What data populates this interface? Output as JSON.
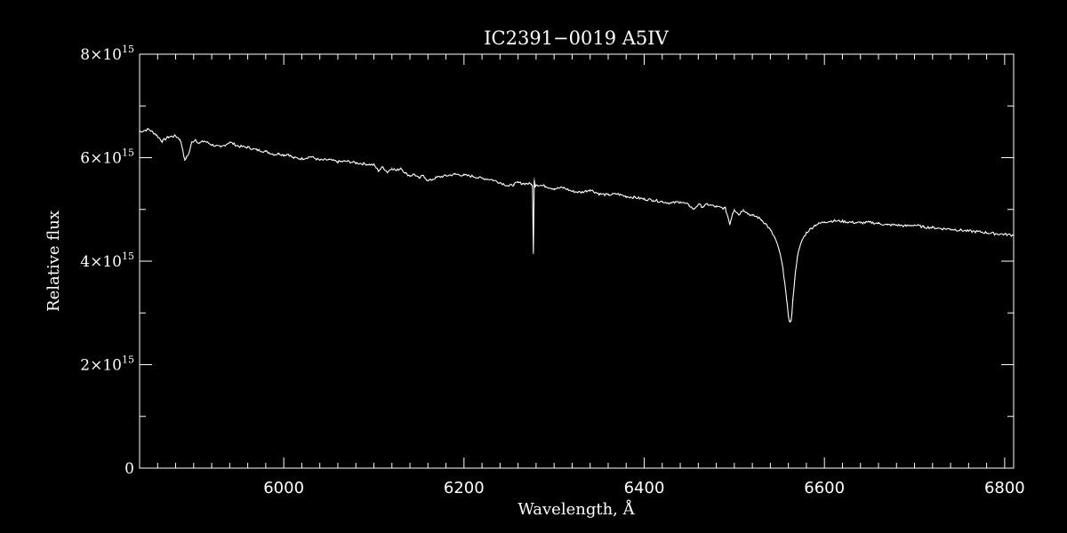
{
  "chart_data": {
    "type": "line",
    "title": "IC2391−0019   A5IV",
    "xlabel": "Wavelength, Å",
    "ylabel": "Relative flux",
    "xlim": [
      5840,
      6810
    ],
    "ylim": [
      0,
      8000000000000000.0
    ],
    "x_ticks": [
      6000,
      6200,
      6400,
      6600,
      6800
    ],
    "x_tick_labels": [
      "6000",
      "6200",
      "6400",
      "6600",
      "6800"
    ],
    "y_ticks": [
      0,
      2000000000000000.0,
      4000000000000000.0,
      6000000000000000.0,
      8000000000000000.0
    ],
    "y_tick_labels": [
      {
        "base": "0",
        "exp": ""
      },
      {
        "base": "2×10",
        "exp": "15"
      },
      {
        "base": "4×10",
        "exp": "15"
      },
      {
        "base": "6×10",
        "exp": "15"
      },
      {
        "base": "8×10",
        "exp": "15"
      }
    ],
    "grid": false,
    "colors": {
      "background": "#000000",
      "line": "#ffffff"
    },
    "series": [
      {
        "x": [
          5840,
          5850,
          5858,
          5865,
          5872,
          5880,
          5885,
          5888,
          5890,
          5892,
          5895,
          5898,
          5902,
          5906,
          5912,
          5920,
          5930,
          5940,
          5950,
          5960,
          5970,
          5980,
          5990,
          5995,
          6000,
          6005,
          6010,
          6020,
          6030,
          6040,
          6050,
          6060,
          6070,
          6080,
          6090,
          6100,
          6105,
          6110,
          6115,
          6120,
          6125,
          6130,
          6135,
          6140,
          6145,
          6150,
          6155,
          6160,
          6165,
          6170,
          6180,
          6190,
          6200,
          6210,
          6220,
          6230,
          6240,
          6250,
          6255,
          6260,
          6265,
          6270,
          6275,
          6276,
          6277,
          6278,
          6279,
          6280,
          6290,
          6300,
          6310,
          6320,
          6330,
          6340,
          6350,
          6360,
          6370,
          6380,
          6390,
          6400,
          6410,
          6420,
          6430,
          6440,
          6450,
          6455,
          6460,
          6465,
          6470,
          6480,
          6490,
          6493,
          6495,
          6498,
          6500,
          6505,
          6510,
          6515,
          6520,
          6525,
          6530,
          6535,
          6540,
          6545,
          6550,
          6553,
          6556,
          6558,
          6560,
          6561,
          6562,
          6563,
          6564,
          6565,
          6567,
          6570,
          6575,
          6580,
          6585,
          6590,
          6600,
          6610,
          6620,
          6630,
          6640,
          6650,
          6660,
          6670,
          6680,
          6690,
          6700,
          6710,
          6720,
          6730,
          6740,
          6750,
          6760,
          6770,
          6780,
          6790,
          6800,
          6810
        ],
        "y": [
          6500000000000000.0,
          6550000000000000.0,
          6450000000000000.0,
          6320000000000000.0,
          6400000000000000.0,
          6420000000000000.0,
          6350000000000000.0,
          6150000000000000.0,
          5950000000000000.0,
          6000000000000000.0,
          6100000000000000.0,
          6300000000000000.0,
          6350000000000000.0,
          6280000000000000.0,
          6320000000000000.0,
          6250000000000000.0,
          6200000000000000.0,
          6300000000000000.0,
          6220000000000000.0,
          6200000000000000.0,
          6150000000000000.0,
          6120000000000000.0,
          6060000000000000.0,
          6080000000000000.0,
          6050000000000000.0,
          6070000000000000.0,
          6000000000000000.0,
          5980000000000000.0,
          6020000000000000.0,
          5950000000000000.0,
          5960000000000000.0,
          5920000000000000.0,
          5930000000000000.0,
          5900000000000000.0,
          5880000000000000.0,
          5860000000000000.0,
          5750000000000000.0,
          5820000000000000.0,
          5720000000000000.0,
          5800000000000000.0,
          5750000000000000.0,
          5800000000000000.0,
          5700000000000000.0,
          5650000000000000.0,
          5680000000000000.0,
          5600000000000000.0,
          5660000000000000.0,
          5550000000000000.0,
          5580000000000000.0,
          5620000000000000.0,
          5650000000000000.0,
          5680000000000000.0,
          5660000000000000.0,
          5640000000000000.0,
          5600000000000000.0,
          5580000000000000.0,
          5520000000000000.0,
          5450000000000000.0,
          5480000000000000.0,
          5520000000000000.0,
          5500000000000000.0,
          5500000000000000.0,
          5490000000000000.0,
          5450000000000000.0,
          4150000000000000.0,
          5600000000000000.0,
          5450000000000000.0,
          5480000000000000.0,
          5450000000000000.0,
          5400000000000000.0,
          5420000000000000.0,
          5350000000000000.0,
          5330000000000000.0,
          5380000000000000.0,
          5300000000000000.0,
          5280000000000000.0,
          5300000000000000.0,
          5250000000000000.0,
          5230000000000000.0,
          5200000000000000.0,
          5180000000000000.0,
          5150000000000000.0,
          5120000000000000.0,
          5150000000000000.0,
          5080000000000000.0,
          5000000000000000.0,
          5100000000000000.0,
          5050000000000000.0,
          5100000000000000.0,
          5050000000000000.0,
          5020000000000000.0,
          4850000000000000.0,
          4720000000000000.0,
          4920000000000000.0,
          5000000000000000.0,
          4900000000000000.0,
          5000000000000000.0,
          4920000000000000.0,
          4880000000000000.0,
          4860000000000000.0,
          4800000000000000.0,
          4720000000000000.0,
          4600000000000000.0,
          4450000000000000.0,
          4200000000000000.0,
          3950000000000000.0,
          3600000000000000.0,
          3250000000000000.0,
          2950000000000000.0,
          2860000000000000.0,
          2820000000000000.0,
          2860000000000000.0,
          3000000000000000.0,
          3250000000000000.0,
          3650000000000000.0,
          4100000000000000.0,
          4400000000000000.0,
          4550000000000000.0,
          4630000000000000.0,
          4700000000000000.0,
          4760000000000000.0,
          4780000000000000.0,
          4770000000000000.0,
          4750000000000000.0,
          4740000000000000.0,
          4750000000000000.0,
          4730000000000000.0,
          4700000000000000.0,
          4700000000000000.0,
          4680000000000000.0,
          4700000000000000.0,
          4660000000000000.0,
          4650000000000000.0,
          4630000000000000.0,
          4620000000000000.0,
          4600000000000000.0,
          4580000000000000.0,
          4570000000000000.0,
          4550000000000000.0,
          4530000000000000.0,
          4520000000000000.0,
          4500000000000000.0
        ]
      }
    ]
  }
}
